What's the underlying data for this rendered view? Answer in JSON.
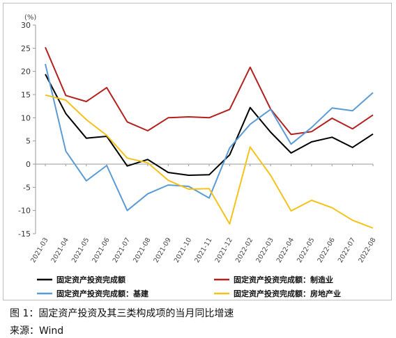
{
  "caption": "图 1：固定资产投资及其三类构成项的当月同比增速",
  "source": "来源：Wind",
  "chart_data": {
    "type": "line",
    "unit": "(%)",
    "ylim": [
      -15,
      30
    ],
    "yticks": [
      30,
      25,
      20,
      15,
      10,
      5,
      0,
      -5,
      -10,
      -15
    ],
    "grid": false,
    "legend_position": "bottom",
    "categories": [
      "2021-03",
      "2021-04",
      "2021-05",
      "2021-06",
      "2021-07",
      "2021-08",
      "2021-09",
      "2021-10",
      "2021-11",
      "2021-12",
      "2022-02",
      "2022-03",
      "2022-04",
      "2022-05",
      "2022-06",
      "2022-07",
      "2022-08"
    ],
    "series": [
      {
        "name": "固定资产投资完成额",
        "color": "#000000",
        "values": [
          19.4,
          10.9,
          5.6,
          6.0,
          -0.4,
          1.0,
          -1.8,
          -2.4,
          -2.3,
          2.0,
          12.2,
          6.9,
          2.4,
          4.8,
          5.8,
          3.6,
          6.5
        ]
      },
      {
        "name": "固定资产投资完成额：制造业",
        "color": "#b2211f",
        "values": [
          25.2,
          14.8,
          13.5,
          16.5,
          9.1,
          7.2,
          10.0,
          10.2,
          10.0,
          11.8,
          20.9,
          11.9,
          6.4,
          7.0,
          9.9,
          7.6,
          10.6
        ]
      },
      {
        "name": "固定资产投资完成额：基建",
        "color": "#5b9bd5",
        "values": [
          21.6,
          2.8,
          -3.6,
          -0.3,
          -10.0,
          -6.4,
          -4.5,
          -4.8,
          -7.3,
          3.5,
          8.6,
          11.8,
          4.3,
          7.9,
          12.1,
          11.5,
          15.4
        ]
      },
      {
        "name": "固定资产投资完成额：房地产业",
        "color": "#f5c21b",
        "values": [
          14.9,
          13.8,
          9.6,
          6.2,
          1.3,
          0.3,
          -3.5,
          -5.4,
          -5.3,
          -12.9,
          3.7,
          -2.4,
          -10.1,
          -7.8,
          -9.4,
          -12.1,
          -13.8
        ]
      }
    ]
  }
}
